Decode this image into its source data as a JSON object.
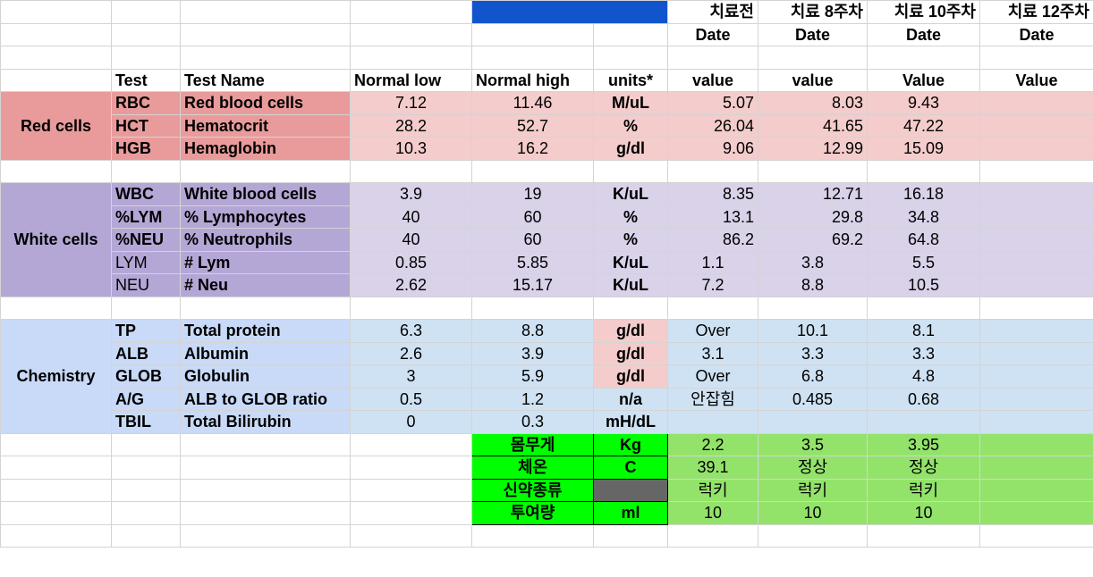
{
  "top_headers": [
    "치료전",
    "치료 8주차",
    "치료 10주차",
    "치료 12주차"
  ],
  "date_headers": [
    "Date",
    "Date",
    "Date",
    "Date"
  ],
  "columns": {
    "test": "Test",
    "test_name": "Test Name",
    "normal_low": "Normal low",
    "normal_high": "Normal high",
    "units": "units*",
    "values": [
      "value",
      "value",
      "Value",
      "Value"
    ]
  },
  "groups": {
    "red": "Red cells",
    "white": "White cells",
    "chem": "Chemistry"
  },
  "red_rows": [
    {
      "code": "RBC",
      "name": "Red blood cells",
      "low": "7.12",
      "high": "11.46",
      "unit": "M/uL",
      "v1": "5.07",
      "v2": "8.03",
      "v3": "9.43",
      "v4": ""
    },
    {
      "code": "HCT",
      "name": "Hematocrit",
      "low": "28.2",
      "high": "52.7",
      "unit": "%",
      "v1": "26.04",
      "v2": "41.65",
      "v3": "47.22",
      "v4": ""
    },
    {
      "code": "HGB",
      "name": "Hemaglobin",
      "low": "10.3",
      "high": "16.2",
      "unit": "g/dl",
      "v1": "9.06",
      "v2": "12.99",
      "v3": "15.09",
      "v4": ""
    }
  ],
  "white_rows": [
    {
      "code": "WBC",
      "name": "White blood cells",
      "low": "3.9",
      "high": "19",
      "unit": "K/uL",
      "v1": "8.35",
      "v2": "12.71",
      "v3": "16.18",
      "v4": ""
    },
    {
      "code": "%LYM",
      "name": "% Lymphocytes",
      "low": "40",
      "high": "60",
      "unit": "%",
      "v1": "13.1",
      "v2": "29.8",
      "v3": "34.8",
      "v4": ""
    },
    {
      "code": "%NEU",
      "name": "% Neutrophils",
      "low": "40",
      "high": "60",
      "unit": "%",
      "v1": "86.2",
      "v2": "69.2",
      "v3": "64.8",
      "v4": ""
    },
    {
      "code": "LYM",
      "name": "# Lym",
      "low": "0.85",
      "high": "5.85",
      "unit": "K/uL",
      "v1": "1.1",
      "v2": "3.8",
      "v3": "5.5",
      "v4": ""
    },
    {
      "code": "NEU",
      "name": "# Neu",
      "low": "2.62",
      "high": "15.17",
      "unit": "K/uL",
      "v1": "7.2",
      "v2": "8.8",
      "v3": "10.5",
      "v4": ""
    }
  ],
  "chem_rows": [
    {
      "code": "TP",
      "name": "Total protein",
      "low": "6.3",
      "high": "8.8",
      "unit": "g/dl",
      "v1": "Over",
      "v2": "10.1",
      "v3": "8.1",
      "v4": ""
    },
    {
      "code": "ALB",
      "name": "Albumin",
      "low": "2.6",
      "high": "3.9",
      "unit": "g/dl",
      "v1": "3.1",
      "v2": "3.3",
      "v3": "3.3",
      "v4": ""
    },
    {
      "code": "GLOB",
      "name": "Globulin",
      "low": "3",
      "high": "5.9",
      "unit": "g/dl",
      "v1": "Over",
      "v2": "6.8",
      "v3": "4.8",
      "v4": ""
    },
    {
      "code": "A/G",
      "name": "ALB to GLOB ratio",
      "low": "0.5",
      "high": "1.2",
      "unit": "n/a",
      "v1": "안잡힘",
      "v2": "0.485",
      "v3": "0.68",
      "v4": ""
    },
    {
      "code": "TBIL",
      "name": "Total Bilirubin",
      "low": "0",
      "high": "0.3",
      "unit": "mH/dL",
      "v1": "",
      "v2": "",
      "v3": "",
      "v4": ""
    }
  ],
  "extra_rows": [
    {
      "label": "몸무게",
      "unit": "Kg",
      "v1": "2.2",
      "v2": "3.5",
      "v3": "3.95",
      "v4": ""
    },
    {
      "label": "체온",
      "unit": "C",
      "v1": "39.1",
      "v2": "정상",
      "v3": "정상",
      "v4": ""
    },
    {
      "label": "신약종류",
      "unit": "",
      "v1": "럭키",
      "v2": "럭키",
      "v3": "럭키",
      "v4": ""
    },
    {
      "label": "투여량",
      "unit": "ml",
      "v1": "10",
      "v2": "10",
      "v3": "10",
      "v4": ""
    }
  ],
  "colors": {
    "red_label": "#e99b9b",
    "red_value": "#f4cccc",
    "white_label": "#b4a7d6",
    "white_value": "#d9d2e9",
    "chem_label": "#c9daf8",
    "chem_value": "#cfe2f3",
    "extra_label": "#00ff00",
    "extra_value": "#93e36b",
    "header_block": "#1155cc",
    "red_text": "#ff0000"
  }
}
